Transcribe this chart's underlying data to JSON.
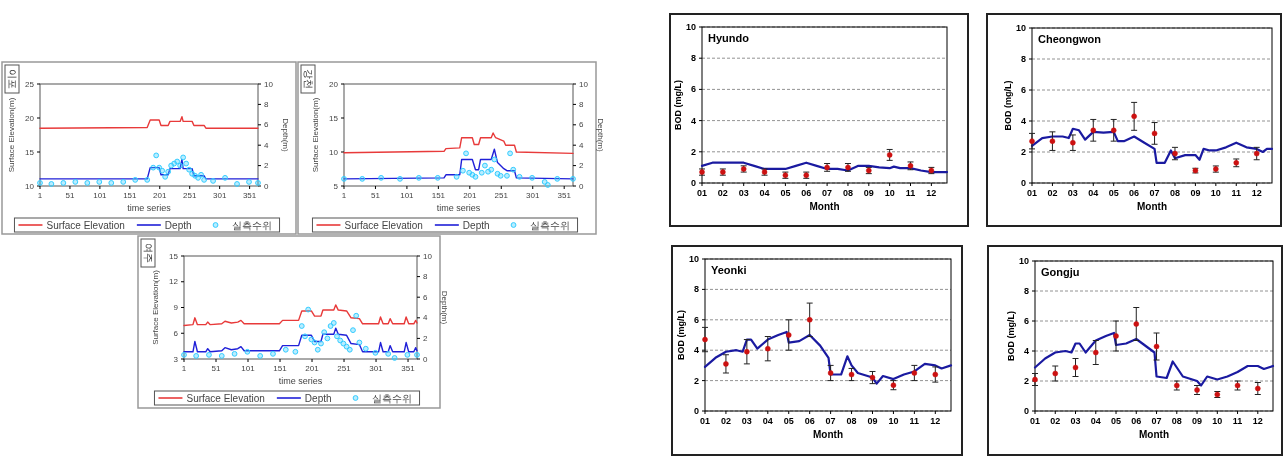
{
  "chart_data": [
    {
      "type": "line",
      "title": "이포",
      "xlabel": "time series",
      "ylabel": "Surface Elevation(m)",
      "y2label": "Depth(m)",
      "xlim": [
        1,
        365
      ],
      "xticks": [
        1,
        51,
        101,
        151,
        201,
        251,
        301,
        351
      ],
      "ylim": [
        10,
        25
      ],
      "yticks": [
        10,
        15,
        20,
        25
      ],
      "y2lim": [
        0,
        10
      ],
      "y2ticks": [
        0,
        2,
        4,
        6,
        8,
        10
      ],
      "legend": "bottom",
      "series": [
        {
          "name": "Surface Elevation",
          "color": "#e83a3a",
          "x": [
            1,
            180,
            185,
            200,
            203,
            215,
            218,
            235,
            238,
            240,
            255,
            258,
            275,
            278,
            365
          ],
          "values": [
            18.5,
            18.6,
            19.7,
            19.7,
            18.9,
            18.9,
            19.5,
            19.5,
            20.2,
            19.5,
            19.5,
            18.9,
            18.9,
            18.5,
            18.5
          ]
        },
        {
          "name": "Depth",
          "color": "#2020d8",
          "axis": "y2",
          "x": [
            1,
            180,
            185,
            200,
            203,
            215,
            218,
            235,
            238,
            240,
            255,
            258,
            275,
            278,
            365
          ],
          "values": [
            0.7,
            0.7,
            1.8,
            1.8,
            1.1,
            1.1,
            1.7,
            1.7,
            2.6,
            1.7,
            1.7,
            1.0,
            1.0,
            0.7,
            0.7
          ]
        },
        {
          "name": "실측수위",
          "type": "scatter",
          "marker": "circle",
          "color": "#33ccff",
          "axis": "y2",
          "x": [
            1,
            20,
            40,
            60,
            80,
            100,
            120,
            140,
            160,
            180,
            190,
            195,
            200,
            205,
            210,
            215,
            220,
            225,
            230,
            235,
            240,
            245,
            250,
            255,
            260,
            265,
            270,
            275,
            290,
            310,
            330,
            350,
            365
          ],
          "values": [
            0.3,
            0.2,
            0.3,
            0.4,
            0.3,
            0.4,
            0.3,
            0.4,
            0.6,
            0.6,
            1.8,
            3.0,
            1.8,
            1.5,
            0.9,
            1.4,
            2.0,
            2.2,
            2.4,
            2.0,
            2.8,
            2.2,
            1.6,
            1.2,
            1.0,
            0.8,
            1.1,
            0.6,
            0.5,
            0.8,
            0.2,
            0.4,
            0.3
          ]
        }
      ]
    },
    {
      "type": "line",
      "title": "강천",
      "xlabel": "time series",
      "ylabel": "Surface Elevation(m)",
      "y2label": "Depth(m)",
      "xlim": [
        1,
        365
      ],
      "xticks": [
        1,
        51,
        101,
        151,
        201,
        251,
        301,
        351
      ],
      "ylim": [
        5,
        20
      ],
      "yticks": [
        5,
        10,
        15,
        20
      ],
      "y2lim": [
        0,
        10
      ],
      "y2ticks": [
        0,
        2,
        4,
        6,
        8,
        10
      ],
      "legend": "bottom",
      "series": [
        {
          "name": "Surface Elevation",
          "color": "#e83a3a",
          "x": [
            1,
            160,
            163,
            185,
            188,
            205,
            208,
            215,
            218,
            235,
            238,
            242,
            255,
            258,
            272,
            275,
            365
          ],
          "values": [
            9.9,
            10.1,
            10.5,
            10.6,
            12.1,
            12.1,
            11.1,
            11.1,
            12.1,
            12.1,
            12.8,
            12.1,
            11.6,
            11.0,
            11.0,
            10.0,
            9.8
          ]
        },
        {
          "name": "Depth",
          "color": "#2020d8",
          "axis": "y2",
          "x": [
            1,
            160,
            163,
            185,
            188,
            205,
            210,
            215,
            218,
            235,
            240,
            245,
            255,
            260,
            272,
            275,
            365
          ],
          "values": [
            0.7,
            0.8,
            1.1,
            1.1,
            2.6,
            2.6,
            1.6,
            1.6,
            2.6,
            2.6,
            3.6,
            2.3,
            1.7,
            1.5,
            1.5,
            0.8,
            0.7
          ]
        },
        {
          "name": "실측수위",
          "type": "scatter",
          "marker": "circle",
          "color": "#33ccff",
          "axis": "y2",
          "x": [
            1,
            30,
            60,
            90,
            120,
            150,
            180,
            190,
            195,
            200,
            205,
            210,
            220,
            225,
            230,
            235,
            240,
            245,
            250,
            260,
            265,
            270,
            280,
            300,
            320,
            325,
            340,
            365
          ],
          "values": [
            0.7,
            0.7,
            0.8,
            0.7,
            0.8,
            0.8,
            0.9,
            1.5,
            3.2,
            1.3,
            1.1,
            0.9,
            1.3,
            2.0,
            1.4,
            1.6,
            2.6,
            1.2,
            1.0,
            1.0,
            3.2,
            1.6,
            0.9,
            0.8,
            0.4,
            0.1,
            0.7,
            0.7
          ]
        }
      ]
    },
    {
      "type": "line",
      "title": "여주",
      "xlabel": "time series",
      "ylabel": "Surface Elevation(m)",
      "y2label": "Depth(m)",
      "xlim": [
        1,
        365
      ],
      "xticks": [
        1,
        51,
        101,
        151,
        201,
        251,
        301,
        351
      ],
      "ylim": [
        3,
        15
      ],
      "yticks": [
        3,
        6,
        9,
        12,
        15
      ],
      "y2lim": [
        0,
        10
      ],
      "y2ticks": [
        0,
        2,
        4,
        6,
        8,
        10
      ],
      "legend": "bottom",
      "series": [
        {
          "name": "Surface Elevation",
          "color": "#e83a3a",
          "x": [
            1,
            15,
            18,
            22,
            35,
            38,
            42,
            60,
            65,
            75,
            85,
            90,
            95,
            150,
            155,
            180,
            185,
            200,
            205,
            215,
            218,
            235,
            238,
            242,
            255,
            262,
            275,
            280,
            305,
            308,
            312,
            320,
            323,
            327,
            345,
            348,
            352,
            360,
            363,
            365
          ],
          "values": [
            6.9,
            7.0,
            7.8,
            7.0,
            7.0,
            7.3,
            7.0,
            7.1,
            7.4,
            7.2,
            7.3,
            7.5,
            7.1,
            7.1,
            7.5,
            7.5,
            8.6,
            8.6,
            8.0,
            8.0,
            8.7,
            8.7,
            9.3,
            8.7,
            8.6,
            7.8,
            7.7,
            7.1,
            7.1,
            7.9,
            7.1,
            7.1,
            7.7,
            7.1,
            7.1,
            7.9,
            7.1,
            7.1,
            7.5,
            7.2
          ]
        },
        {
          "name": "Depth",
          "color": "#2020d8",
          "axis": "y2",
          "x": [
            1,
            15,
            18,
            22,
            35,
            38,
            42,
            60,
            65,
            75,
            85,
            90,
            95,
            150,
            155,
            180,
            185,
            200,
            205,
            215,
            218,
            235,
            238,
            242,
            255,
            262,
            275,
            280,
            305,
            308,
            312,
            320,
            323,
            327,
            345,
            348,
            352,
            360,
            363,
            365
          ],
          "values": [
            0.7,
            0.7,
            1.7,
            0.7,
            0.7,
            1.0,
            0.7,
            0.8,
            1.1,
            0.9,
            1.0,
            1.2,
            0.8,
            0.8,
            1.3,
            1.3,
            2.3,
            2.3,
            1.7,
            1.7,
            2.4,
            2.4,
            3.0,
            2.4,
            2.3,
            1.5,
            1.4,
            0.7,
            0.7,
            1.6,
            0.7,
            0.7,
            1.3,
            0.7,
            0.7,
            1.6,
            0.7,
            0.7,
            1.1,
            0.8
          ]
        },
        {
          "name": "실측수위",
          "type": "scatter",
          "marker": "circle",
          "color": "#33ccff",
          "axis": "y2",
          "x": [
            1,
            20,
            40,
            60,
            80,
            100,
            120,
            140,
            160,
            175,
            185,
            190,
            195,
            200,
            205,
            210,
            215,
            220,
            225,
            230,
            235,
            240,
            245,
            250,
            255,
            260,
            265,
            270,
            275,
            285,
            300,
            320,
            330,
            350,
            365
          ],
          "values": [
            0.4,
            0.3,
            0.4,
            0.3,
            0.5,
            0.7,
            0.3,
            0.5,
            0.9,
            0.7,
            3.2,
            2.2,
            4.8,
            1.9,
            1.6,
            0.9,
            1.5,
            2.6,
            2.0,
            3.2,
            3.5,
            2.2,
            1.8,
            1.5,
            1.2,
            0.9,
            2.8,
            4.2,
            1.6,
            1.0,
            0.6,
            0.5,
            0.1,
            0.4,
            0.4
          ]
        }
      ]
    },
    {
      "type": "line",
      "title": "Hyundo",
      "xlabel": "Month",
      "ylabel": "BOD (mg/L)",
      "xlim": [
        1,
        12.75
      ],
      "xticks": [
        {
          "value": 1,
          "label": "01"
        },
        {
          "value": 2,
          "label": "02"
        },
        {
          "value": 3,
          "label": "03"
        },
        {
          "value": 4,
          "label": "04"
        },
        {
          "value": 5,
          "label": "05"
        },
        {
          "value": 6,
          "label": "06"
        },
        {
          "value": 7,
          "label": "07"
        },
        {
          "value": 8,
          "label": "08"
        },
        {
          "value": 9,
          "label": "09"
        },
        {
          "value": 10,
          "label": "10"
        },
        {
          "value": 11,
          "label": "11"
        },
        {
          "value": 12,
          "label": "12"
        }
      ],
      "ylim": [
        0,
        10
      ],
      "yticks": [
        0,
        2,
        4,
        6,
        8,
        10
      ],
      "grid": "y",
      "series": [
        {
          "color": "#1a1aa0",
          "x": [
            1,
            1.5,
            3,
            3.5,
            4,
            5,
            5.5,
            6,
            6.5,
            7,
            7.5,
            8,
            8.5,
            9,
            9.5,
            10,
            10.2,
            10.5,
            11,
            11.5,
            12,
            12.75
          ],
          "values": [
            1.1,
            1.3,
            1.3,
            1.1,
            0.9,
            0.9,
            1.1,
            1.3,
            1.1,
            0.9,
            0.9,
            0.8,
            1.1,
            1.1,
            1.0,
            0.95,
            1.05,
            0.95,
            0.95,
            0.8,
            0.7,
            0.7
          ]
        },
        {
          "type": "scatter",
          "marker": "circle",
          "color": "#cc1111",
          "x": [
            1,
            2,
            3,
            4,
            5,
            6,
            7,
            8,
            9,
            10,
            11,
            12
          ],
          "values": [
            0.7,
            0.7,
            0.9,
            0.7,
            0.5,
            0.5,
            1.0,
            1.0,
            0.8,
            1.8,
            1.1,
            0.8
          ],
          "errors": [
            0.2,
            0.2,
            0.2,
            0.2,
            0.2,
            0.2,
            0.25,
            0.25,
            0.2,
            0.35,
            0.25,
            0.2
          ]
        }
      ]
    },
    {
      "type": "line",
      "title": "Cheongwon",
      "xlabel": "Month",
      "ylabel": "BOD (mg/L)",
      "xlim": [
        1,
        12.75
      ],
      "xticks": [
        {
          "value": 1,
          "label": "01"
        },
        {
          "value": 2,
          "label": "02"
        },
        {
          "value": 3,
          "label": "03"
        },
        {
          "value": 4,
          "label": "04"
        },
        {
          "value": 5,
          "label": "05"
        },
        {
          "value": 6,
          "label": "06"
        },
        {
          "value": 7,
          "label": "07"
        },
        {
          "value": 8,
          "label": "08"
        },
        {
          "value": 9,
          "label": "09"
        },
        {
          "value": 10,
          "label": "10"
        },
        {
          "value": 11,
          "label": "11"
        },
        {
          "value": 12,
          "label": "12"
        }
      ],
      "ylim": [
        0,
        10
      ],
      "yticks": [
        0,
        2,
        4,
        6,
        8,
        10
      ],
      "grid": "y",
      "series": [
        {
          "color": "#1a1aa0",
          "x": [
            1,
            1.5,
            2,
            2.5,
            2.8,
            3,
            3.3,
            3.6,
            4,
            4.5,
            5,
            5.2,
            5.5,
            6,
            6.5,
            7,
            7.1,
            7.5,
            7.8,
            8,
            8.5,
            9,
            9.2,
            9.4,
            9.7,
            10,
            10.5,
            11,
            11.5,
            12,
            12.3,
            12.5,
            12.75
          ],
          "values": [
            2.4,
            2.9,
            3.0,
            3.0,
            2.9,
            3.5,
            3.4,
            2.8,
            3.3,
            3.25,
            3.3,
            2.7,
            2.7,
            3.0,
            2.6,
            2.2,
            1.3,
            1.3,
            2.1,
            1.6,
            1.8,
            1.8,
            1.5,
            2.2,
            2.1,
            2.1,
            2.3,
            2.6,
            2.3,
            2.2,
            2.0,
            2.2,
            2.2
          ]
        },
        {
          "type": "scatter",
          "marker": "circle",
          "color": "#cc1111",
          "x": [
            1,
            2,
            3,
            4,
            5,
            6,
            7,
            8,
            9,
            10,
            11,
            12
          ],
          "values": [
            2.7,
            2.7,
            2.6,
            3.4,
            3.4,
            4.3,
            3.2,
            1.9,
            0.8,
            0.9,
            1.3,
            1.9
          ],
          "errors": [
            0.5,
            0.6,
            0.5,
            0.7,
            0.7,
            0.9,
            0.7,
            0.4,
            0.15,
            0.2,
            0.25,
            0.4
          ]
        }
      ]
    },
    {
      "type": "line",
      "title": "Yeonki",
      "xlabel": "Month",
      "ylabel": "BOD (mg/L)",
      "xlim": [
        1,
        12.75
      ],
      "xticks": [
        {
          "value": 1,
          "label": "01"
        },
        {
          "value": 2,
          "label": "02"
        },
        {
          "value": 3,
          "label": "03"
        },
        {
          "value": 4,
          "label": "04"
        },
        {
          "value": 5,
          "label": "05"
        },
        {
          "value": 6,
          "label": "06"
        },
        {
          "value": 7,
          "label": "07"
        },
        {
          "value": 8,
          "label": "08"
        },
        {
          "value": 9,
          "label": "09"
        },
        {
          "value": 10,
          "label": "10"
        },
        {
          "value": 11,
          "label": "11"
        },
        {
          "value": 12,
          "label": "12"
        }
      ],
      "ylim": [
        0,
        10
      ],
      "yticks": [
        0,
        2,
        4,
        6,
        8,
        10
      ],
      "grid": "y",
      "series": [
        {
          "color": "#1a1aa0",
          "x": [
            1,
            1.5,
            2,
            2.5,
            2.8,
            3,
            3.2,
            3.5,
            4,
            4.5,
            4.9,
            5,
            5.5,
            6,
            6.5,
            6.9,
            7,
            7.5,
            7.8,
            8,
            8.3,
            9,
            9.2,
            9.5,
            10,
            10.5,
            11,
            11.5,
            12,
            12.3,
            12.75
          ],
          "values": [
            2.9,
            3.5,
            3.9,
            4.0,
            3.9,
            4.7,
            4.7,
            4.1,
            4.7,
            5.0,
            5.2,
            4.5,
            4.6,
            5.0,
            4.3,
            3.5,
            2.4,
            2.4,
            3.6,
            3.0,
            2.5,
            2.2,
            1.8,
            2.3,
            2.1,
            2.4,
            2.6,
            3.1,
            3.0,
            2.8,
            3.0
          ]
        },
        {
          "type": "scatter",
          "marker": "circle",
          "color": "#cc1111",
          "x": [
            1,
            2,
            3,
            4,
            5,
            6,
            7,
            8,
            9,
            10,
            11,
            12
          ],
          "values": [
            4.7,
            3.1,
            3.9,
            4.1,
            5.0,
            6.0,
            2.5,
            2.4,
            2.2,
            1.7,
            2.5,
            2.4
          ],
          "errors": [
            0.8,
            0.6,
            0.8,
            0.8,
            1.0,
            1.1,
            0.5,
            0.4,
            0.4,
            0.3,
            0.5,
            0.5
          ]
        }
      ]
    },
    {
      "type": "line",
      "title": "Gongju",
      "xlabel": "Month",
      "ylabel": "BOD (mg/L)",
      "xlim": [
        1,
        12.75
      ],
      "xticks": [
        {
          "value": 1,
          "label": "01"
        },
        {
          "value": 2,
          "label": "02"
        },
        {
          "value": 3,
          "label": "03"
        },
        {
          "value": 4,
          "label": "04"
        },
        {
          "value": 5,
          "label": "05"
        },
        {
          "value": 6,
          "label": "06"
        },
        {
          "value": 7,
          "label": "07"
        },
        {
          "value": 8,
          "label": "08"
        },
        {
          "value": 9,
          "label": "09"
        },
        {
          "value": 10,
          "label": "10"
        },
        {
          "value": 11,
          "label": "11"
        },
        {
          "value": 12,
          "label": "12"
        }
      ],
      "ylim": [
        0,
        10
      ],
      "yticks": [
        0,
        2,
        4,
        6,
        8,
        10
      ],
      "grid": "y",
      "series": [
        {
          "color": "#1a1aa0",
          "x": [
            1,
            1.5,
            2,
            2.5,
            2.8,
            3,
            3.2,
            3.5,
            4,
            4.5,
            4.9,
            5,
            5.5,
            6,
            6.5,
            6.9,
            7,
            7.5,
            7.8,
            8,
            8.3,
            9,
            9.2,
            9.5,
            10,
            10.5,
            11,
            11.5,
            12,
            12.3,
            12.75
          ],
          "values": [
            2.9,
            3.5,
            3.9,
            4.0,
            3.9,
            4.5,
            4.5,
            3.9,
            4.7,
            5.0,
            5.2,
            4.4,
            4.5,
            4.8,
            4.3,
            3.9,
            2.3,
            2.2,
            3.3,
            2.9,
            2.3,
            2.0,
            1.7,
            2.3,
            2.1,
            2.3,
            2.6,
            3.0,
            3.0,
            2.8,
            3.0
          ]
        },
        {
          "type": "scatter",
          "marker": "circle",
          "color": "#cc1111",
          "x": [
            1,
            2,
            3,
            4,
            5,
            6,
            7,
            8,
            9,
            10,
            11,
            12
          ],
          "values": [
            2.1,
            2.5,
            2.9,
            3.9,
            5.0,
            5.8,
            4.3,
            1.7,
            1.4,
            1.1,
            1.7,
            1.5
          ],
          "errors": [
            0.4,
            0.5,
            0.6,
            0.8,
            1.0,
            1.1,
            0.9,
            0.3,
            0.3,
            0.2,
            0.3,
            0.4
          ]
        }
      ]
    }
  ]
}
